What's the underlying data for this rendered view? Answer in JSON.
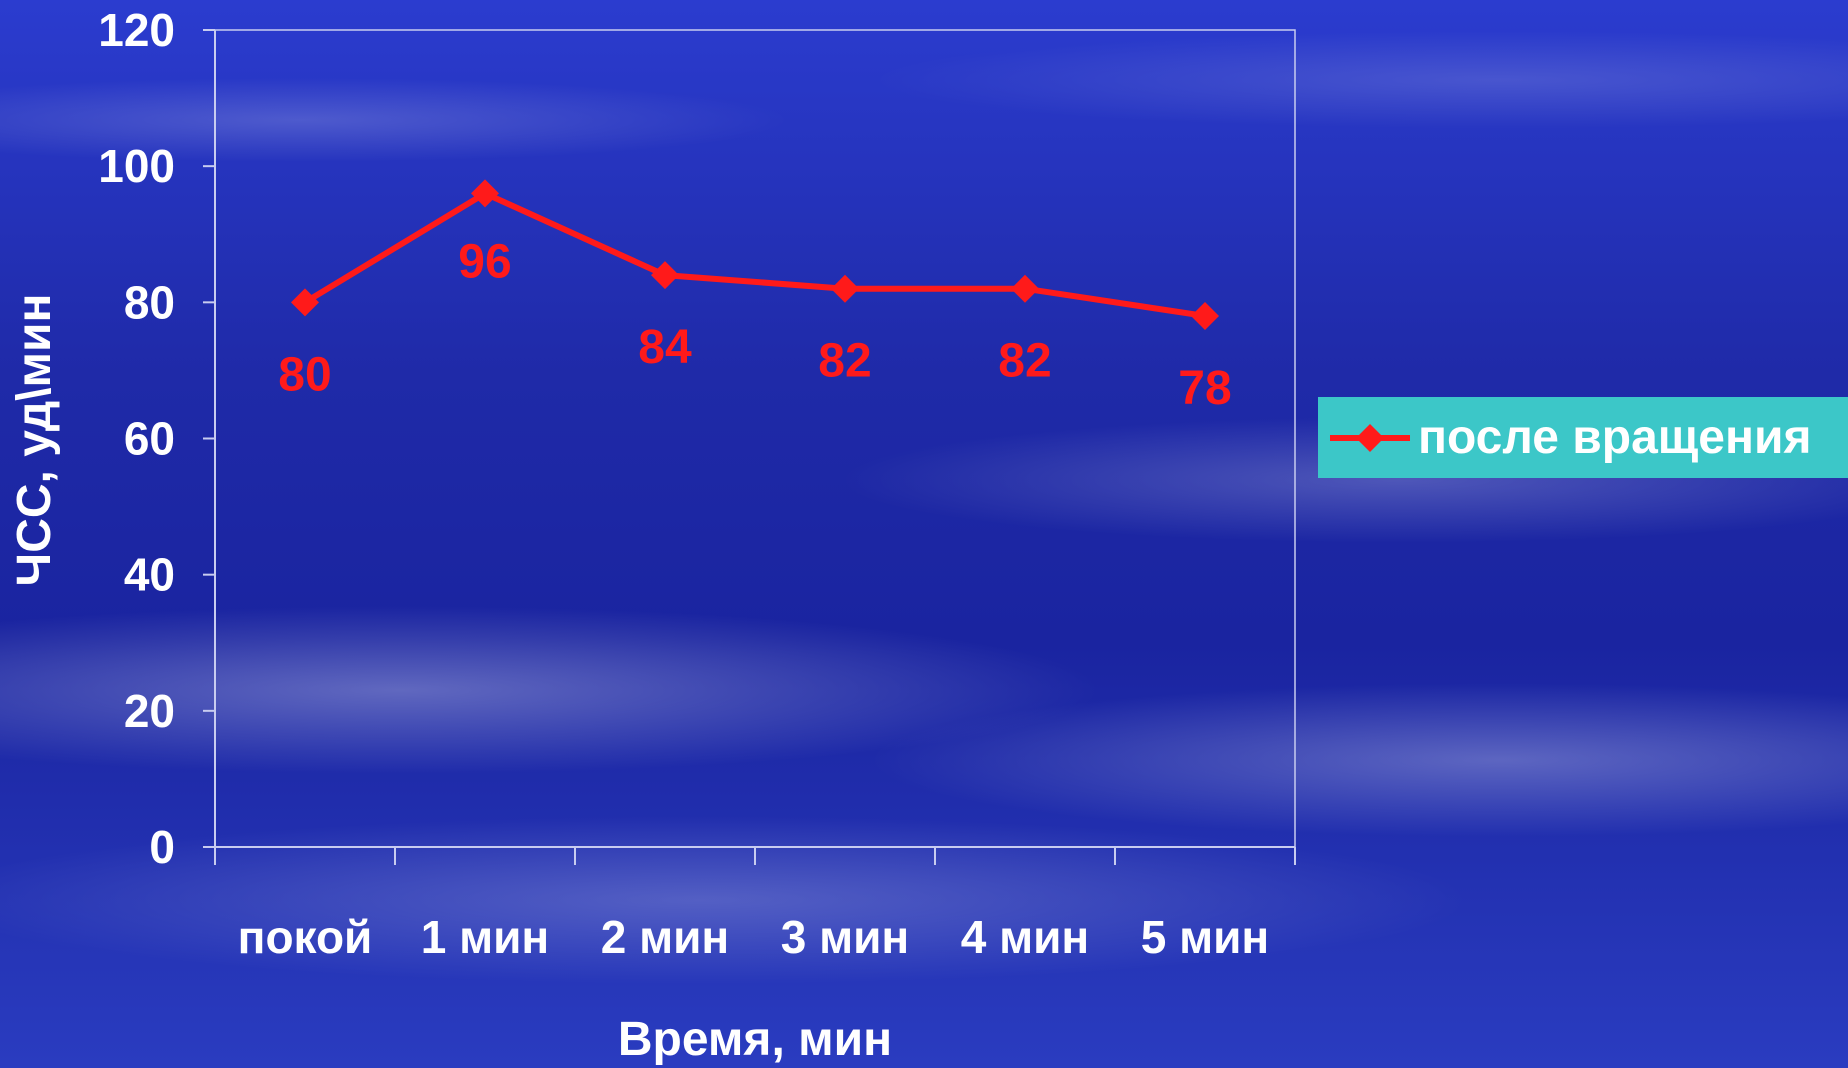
{
  "chart_data": {
    "type": "line",
    "categories": [
      "покой",
      "1 мин",
      "2 мин",
      "3 мин",
      "4 мин",
      "5 мин"
    ],
    "series": [
      {
        "name": "после вращения",
        "values": [
          80,
          96,
          84,
          82,
          82,
          78
        ],
        "color": "#ff1a1a"
      }
    ],
    "xlabel": "Время, мин",
    "ylabel": "ЧСС, уд\\мин",
    "ylim": [
      0,
      120
    ],
    "yticks": [
      "0",
      "20",
      "40",
      "60",
      "80",
      "100",
      "120"
    ],
    "data_labels": [
      "80",
      "96",
      "84",
      "82",
      "82",
      "78"
    ],
    "grid": false,
    "legend_position": "right"
  }
}
